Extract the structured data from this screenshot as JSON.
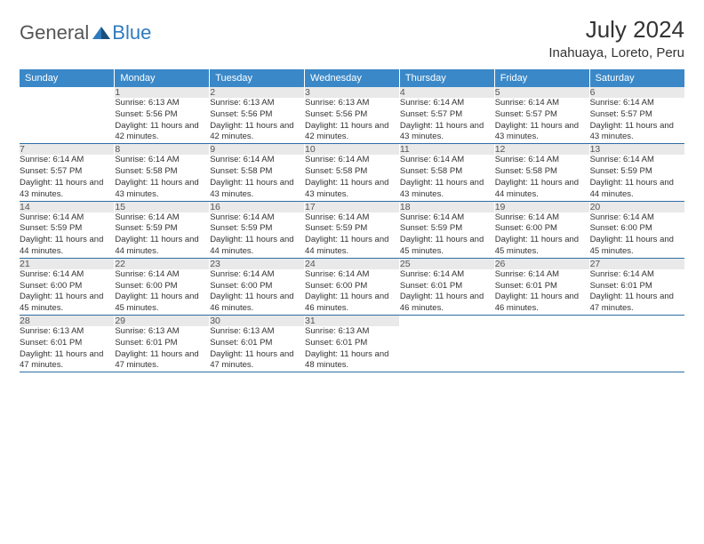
{
  "brand": {
    "general": "General",
    "blue": "Blue"
  },
  "header": {
    "title": "July 2024",
    "location": "Inahuaya, Loreto, Peru"
  },
  "colors": {
    "header_bg": "#3a88c8",
    "header_text": "#ffffff",
    "daynum_bg": "#e9e9e9",
    "border": "#2e6da4",
    "brand_blue": "#2e7bbf",
    "text": "#333333"
  },
  "daysOfWeek": [
    "Sunday",
    "Monday",
    "Tuesday",
    "Wednesday",
    "Thursday",
    "Friday",
    "Saturday"
  ],
  "weeks": [
    [
      null,
      {
        "n": "1",
        "sr": "6:13 AM",
        "ss": "5:56 PM",
        "dl": "11 hours and 42 minutes."
      },
      {
        "n": "2",
        "sr": "6:13 AM",
        "ss": "5:56 PM",
        "dl": "11 hours and 42 minutes."
      },
      {
        "n": "3",
        "sr": "6:13 AM",
        "ss": "5:56 PM",
        "dl": "11 hours and 42 minutes."
      },
      {
        "n": "4",
        "sr": "6:14 AM",
        "ss": "5:57 PM",
        "dl": "11 hours and 43 minutes."
      },
      {
        "n": "5",
        "sr": "6:14 AM",
        "ss": "5:57 PM",
        "dl": "11 hours and 43 minutes."
      },
      {
        "n": "6",
        "sr": "6:14 AM",
        "ss": "5:57 PM",
        "dl": "11 hours and 43 minutes."
      }
    ],
    [
      {
        "n": "7",
        "sr": "6:14 AM",
        "ss": "5:57 PM",
        "dl": "11 hours and 43 minutes."
      },
      {
        "n": "8",
        "sr": "6:14 AM",
        "ss": "5:58 PM",
        "dl": "11 hours and 43 minutes."
      },
      {
        "n": "9",
        "sr": "6:14 AM",
        "ss": "5:58 PM",
        "dl": "11 hours and 43 minutes."
      },
      {
        "n": "10",
        "sr": "6:14 AM",
        "ss": "5:58 PM",
        "dl": "11 hours and 43 minutes."
      },
      {
        "n": "11",
        "sr": "6:14 AM",
        "ss": "5:58 PM",
        "dl": "11 hours and 43 minutes."
      },
      {
        "n": "12",
        "sr": "6:14 AM",
        "ss": "5:58 PM",
        "dl": "11 hours and 44 minutes."
      },
      {
        "n": "13",
        "sr": "6:14 AM",
        "ss": "5:59 PM",
        "dl": "11 hours and 44 minutes."
      }
    ],
    [
      {
        "n": "14",
        "sr": "6:14 AM",
        "ss": "5:59 PM",
        "dl": "11 hours and 44 minutes."
      },
      {
        "n": "15",
        "sr": "6:14 AM",
        "ss": "5:59 PM",
        "dl": "11 hours and 44 minutes."
      },
      {
        "n": "16",
        "sr": "6:14 AM",
        "ss": "5:59 PM",
        "dl": "11 hours and 44 minutes."
      },
      {
        "n": "17",
        "sr": "6:14 AM",
        "ss": "5:59 PM",
        "dl": "11 hours and 44 minutes."
      },
      {
        "n": "18",
        "sr": "6:14 AM",
        "ss": "5:59 PM",
        "dl": "11 hours and 45 minutes."
      },
      {
        "n": "19",
        "sr": "6:14 AM",
        "ss": "6:00 PM",
        "dl": "11 hours and 45 minutes."
      },
      {
        "n": "20",
        "sr": "6:14 AM",
        "ss": "6:00 PM",
        "dl": "11 hours and 45 minutes."
      }
    ],
    [
      {
        "n": "21",
        "sr": "6:14 AM",
        "ss": "6:00 PM",
        "dl": "11 hours and 45 minutes."
      },
      {
        "n": "22",
        "sr": "6:14 AM",
        "ss": "6:00 PM",
        "dl": "11 hours and 45 minutes."
      },
      {
        "n": "23",
        "sr": "6:14 AM",
        "ss": "6:00 PM",
        "dl": "11 hours and 46 minutes."
      },
      {
        "n": "24",
        "sr": "6:14 AM",
        "ss": "6:00 PM",
        "dl": "11 hours and 46 minutes."
      },
      {
        "n": "25",
        "sr": "6:14 AM",
        "ss": "6:01 PM",
        "dl": "11 hours and 46 minutes."
      },
      {
        "n": "26",
        "sr": "6:14 AM",
        "ss": "6:01 PM",
        "dl": "11 hours and 46 minutes."
      },
      {
        "n": "27",
        "sr": "6:14 AM",
        "ss": "6:01 PM",
        "dl": "11 hours and 47 minutes."
      }
    ],
    [
      {
        "n": "28",
        "sr": "6:13 AM",
        "ss": "6:01 PM",
        "dl": "11 hours and 47 minutes."
      },
      {
        "n": "29",
        "sr": "6:13 AM",
        "ss": "6:01 PM",
        "dl": "11 hours and 47 minutes."
      },
      {
        "n": "30",
        "sr": "6:13 AM",
        "ss": "6:01 PM",
        "dl": "11 hours and 47 minutes."
      },
      {
        "n": "31",
        "sr": "6:13 AM",
        "ss": "6:01 PM",
        "dl": "11 hours and 48 minutes."
      },
      null,
      null,
      null
    ]
  ],
  "labels": {
    "sunrise": "Sunrise:",
    "sunset": "Sunset:",
    "daylight": "Daylight:"
  }
}
